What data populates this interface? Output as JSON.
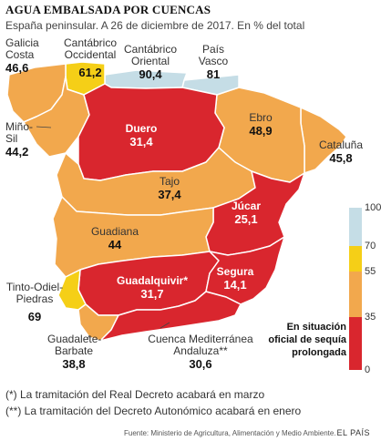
{
  "title": "AGUA EMBALSADA POR CUENCAS",
  "subtitle": "España peninsular. A 26 de diciembre de 2017. En % del total",
  "colors": {
    "range_70_100": "#c5dde6",
    "range_55_70": "#f5cf17",
    "range_35_55": "#f2a84d",
    "range_0_35": "#d9262e",
    "border": "#ffffff"
  },
  "basins": [
    {
      "name": "Galicia Costa",
      "value": "46,6"
    },
    {
      "name": "Cantábrico Occidental",
      "value": "61,2"
    },
    {
      "name": "Cantábrico Oriental",
      "value": "90,4"
    },
    {
      "name": "País Vasco",
      "value": "81"
    },
    {
      "name": "Miño-Sil",
      "value": "44,2"
    },
    {
      "name": "Duero",
      "value": "31,4"
    },
    {
      "name": "Ebro",
      "value": "48,9"
    },
    {
      "name": "Cataluña",
      "value": "45,8"
    },
    {
      "name": "Tajo",
      "value": "37,4"
    },
    {
      "name": "Júcar",
      "value": "25,1"
    },
    {
      "name": "Guadiana",
      "value": "44"
    },
    {
      "name": "Tinto-Odiel-Piedras",
      "value": "69"
    },
    {
      "name": "Guadalquivir*",
      "value": "31,7"
    },
    {
      "name": "Segura",
      "value": "14,1"
    },
    {
      "name": "Guadalete-Barbate",
      "value": "38,8"
    },
    {
      "name": "Cuenca Mediterránea Andaluza**",
      "value": "30,6"
    }
  ],
  "legend": {
    "ticks": [
      "100",
      "70",
      "55",
      "35",
      "0"
    ],
    "note": "En situación oficial de sequía prolongada"
  },
  "footnotes": [
    "(*) La tramitación del Real Decreto acabará en marzo",
    "(**) La tramitación del Decreto Autonómico acabará en enero"
  ],
  "source": "Fuente: Ministerio de Agricultura, Alimentación y Medio Ambiente.",
  "brand": "EL PAÍS"
}
